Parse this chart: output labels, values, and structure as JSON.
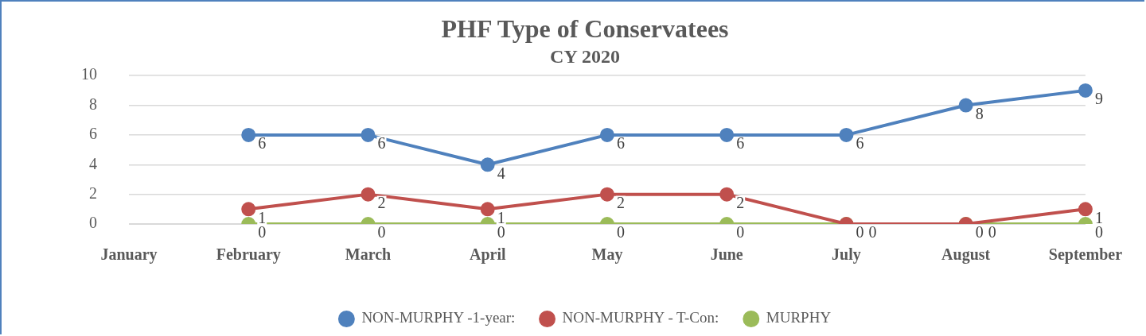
{
  "chart_data": {
    "type": "line",
    "title": "PHF Type of Conservatees",
    "subtitle": "CY 2020",
    "categories": [
      "January",
      "February",
      "March",
      "April",
      "May",
      "June",
      "July",
      "August",
      "September"
    ],
    "series": [
      {
        "name": "NON-MURPHY -1-year:",
        "color": "#4f81bd",
        "values": [
          null,
          6,
          6,
          4,
          6,
          6,
          6,
          8,
          9
        ]
      },
      {
        "name": "NON-MURPHY - T-Con:",
        "color": "#c0504d",
        "values": [
          null,
          1,
          2,
          1,
          2,
          2,
          0,
          0,
          1
        ]
      },
      {
        "name": "MURPHY",
        "color": "#9bbb59",
        "values": [
          null,
          0,
          0,
          0,
          0,
          0,
          0,
          0,
          0
        ]
      }
    ],
    "ylim": [
      0,
      10
    ],
    "yticks": [
      0,
      2,
      4,
      6,
      8,
      10
    ],
    "grid": "y",
    "legend": "bottom",
    "marker": "circle",
    "line_style": "solid",
    "data_labels": true
  }
}
